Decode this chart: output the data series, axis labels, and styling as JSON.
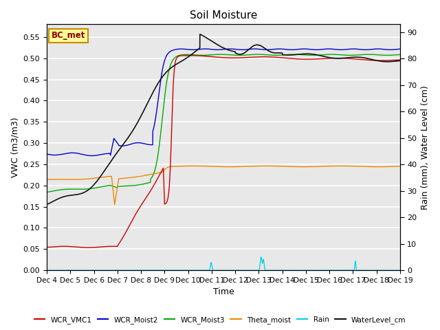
{
  "title": "Soil Moisture",
  "xlabel": "Time",
  "ylabel_left": "VWC (m3/m3)",
  "ylabel_right": "Rain (mm), Water Level (cm)",
  "xlim_days": [
    4,
    19
  ],
  "ylim_left": [
    0.0,
    0.58
  ],
  "ylim_right": [
    0,
    93
  ],
  "yticks_left": [
    0.0,
    0.05,
    0.1,
    0.15,
    0.2,
    0.25,
    0.3,
    0.35,
    0.4,
    0.45,
    0.5,
    0.55
  ],
  "yticks_right": [
    0,
    10,
    20,
    30,
    40,
    50,
    60,
    70,
    80,
    90
  ],
  "xtick_labels": [
    "Dec 4",
    "Dec 5",
    "Dec 6",
    "Dec 7",
    "Dec 8",
    "Dec 9",
    "Dec 10",
    "Dec 11",
    "Dec 12",
    "Dec 13",
    "Dec 14",
    "Dec 15",
    "Dec 16",
    "Dec 17",
    "Dec 18",
    "Dec 19"
  ],
  "annotation_box": "BC_met",
  "background_color": "#e8e8e8",
  "line_colors": {
    "WCR_VMC1": "#cc0000",
    "WCR_Moist2": "#0000cc",
    "WCR_Moist3": "#00aa00",
    "Theta_moist": "#ee8800",
    "Rain": "#00ccee",
    "WaterLevel_cm": "#111111"
  }
}
